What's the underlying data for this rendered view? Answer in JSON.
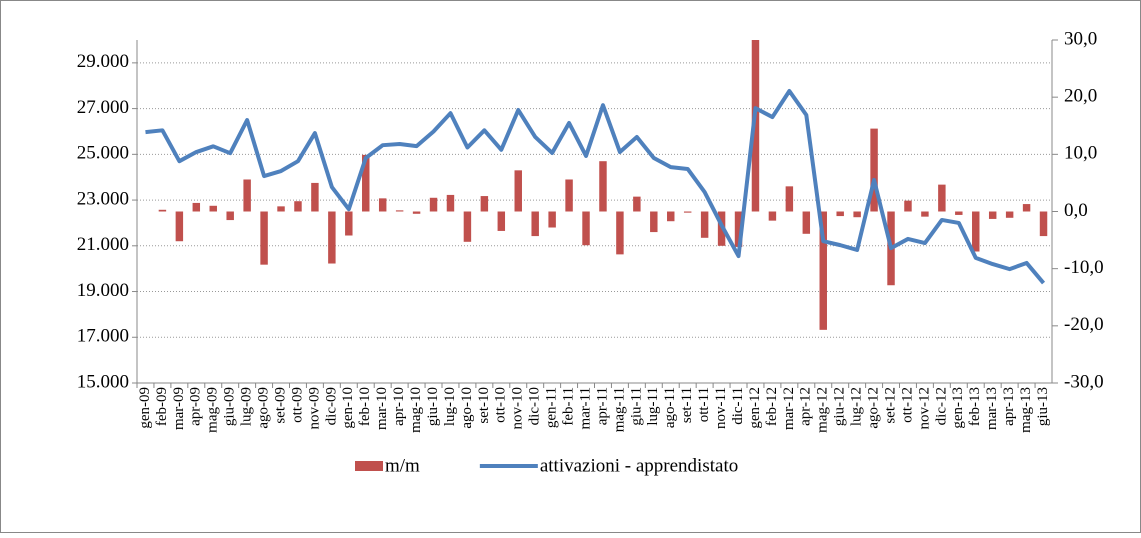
{
  "chart_data": {
    "type": "bar_line",
    "categories": [
      "gen-09",
      "feb-09",
      "mar-09",
      "apr-09",
      "mag-09",
      "giu-09",
      "lug-09",
      "ago-09",
      "set-09",
      "ott-09",
      "nov-09",
      "dic-09",
      "gen-10",
      "feb-10",
      "mar-10",
      "apr-10",
      "mag-10",
      "giu-10",
      "lug-10",
      "ago-10",
      "set-10",
      "ott-10",
      "nov-10",
      "dic-10",
      "gen-11",
      "feb-11",
      "mar-11",
      "apr-11",
      "mag-11",
      "giu-11",
      "lug-11",
      "ago-11",
      "set-11",
      "ott-11",
      "nov-11",
      "dic-11",
      "gen-12",
      "feb-12",
      "mar-12",
      "apr-12",
      "mag-12",
      "giu-12",
      "lug-12",
      "ago-12",
      "set-12",
      "ott-12",
      "nov-12",
      "dic-12",
      "gen-13",
      "feb-13",
      "mar-13",
      "apr-13",
      "mag-13",
      "giu-13"
    ],
    "series": [
      {
        "name": "m/m",
        "type": "bar",
        "axis": "y2",
        "color": "#c0504d",
        "values": [
          null,
          0.3,
          -5.2,
          1.5,
          1.0,
          -1.5,
          5.6,
          -9.3,
          0.9,
          1.8,
          5.0,
          -9.1,
          -4.2,
          9.9,
          2.3,
          0.2,
          -0.4,
          2.4,
          2.9,
          -5.3,
          2.7,
          -3.4,
          7.2,
          -4.3,
          -2.8,
          5.6,
          -5.9,
          8.8,
          -7.5,
          2.6,
          -3.6,
          -1.7,
          -0.2,
          -4.6,
          -6.0,
          -6.2,
          30.0,
          -1.6,
          4.4,
          -3.9,
          -20.7,
          -0.8,
          -1.0,
          14.5,
          -12.9,
          1.9,
          -0.9,
          4.7,
          -0.6,
          -7.0,
          -1.3,
          -1.1,
          1.3,
          -4.3
        ]
      },
      {
        "name": "attivazioni - apprendistato",
        "type": "line",
        "axis": "y",
        "color": "#4f81bd",
        "values": [
          25970,
          26050,
          24700,
          25100,
          25350,
          25050,
          26500,
          24050,
          24270,
          24700,
          25930,
          23570,
          22600,
          24840,
          25400,
          25450,
          25360,
          26000,
          26800,
          25300,
          26050,
          25200,
          26940,
          25760,
          25060,
          26370,
          24930,
          27150,
          25100,
          25760,
          24840,
          24440,
          24360,
          23350,
          21900,
          20550,
          27020,
          26630,
          27770,
          26720,
          21200,
          21030,
          20820,
          23880,
          20900,
          21300,
          21120,
          22130,
          22000,
          20470,
          20200,
          19980,
          20250,
          19370
        ]
      }
    ],
    "ylim": [
      15000,
      30000
    ],
    "yticks": [
      {
        "value": 15000,
        "label": "15.000"
      },
      {
        "value": 17000,
        "label": "17.000"
      },
      {
        "value": 19000,
        "label": "19.000"
      },
      {
        "value": 21000,
        "label": "21.000"
      },
      {
        "value": 23000,
        "label": "23.000"
      },
      {
        "value": 25000,
        "label": "25.000"
      },
      {
        "value": 27000,
        "label": "27.000"
      },
      {
        "value": 29000,
        "label": "29.000"
      }
    ],
    "y2lim": [
      -30,
      30
    ],
    "y2ticks": [
      {
        "value": -30,
        "label": "-30,0"
      },
      {
        "value": -20,
        "label": "-20,0"
      },
      {
        "value": -10,
        "label": "-10,0"
      },
      {
        "value": 0,
        "label": "0,0"
      },
      {
        "value": 10,
        "label": "10,0"
      },
      {
        "value": 20,
        "label": "20,0"
      },
      {
        "value": 30,
        "label": "30,0"
      }
    ],
    "grid": true,
    "legend": "bottom"
  }
}
